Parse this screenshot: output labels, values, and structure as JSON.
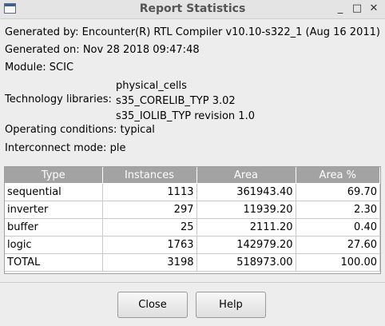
{
  "window": {
    "title": "Report Statistics",
    "minimize": "_",
    "maximize": "□",
    "close": "✕"
  },
  "info": {
    "generated_by_label": "Generated by:",
    "generated_by_value": "Encounter(R) RTL Compiler v10.10-s322_1 (Aug 16 2011)",
    "generated_on_label": "Generated on:",
    "generated_on_value": "Nov 28 2018 09:47:48",
    "module_label": "Module:",
    "module_value": "SCIC",
    "tech_label": "Technology libraries:",
    "tech_values": [
      "physical_cells",
      "s35_CORELIB_TYP 3.02",
      "s35_IOLIB_TYP revision 1.0"
    ],
    "operating_label": "Operating conditions:",
    "operating_value": "typical",
    "interconnect_label": "Interconnect mode:",
    "interconnect_value": "ple"
  },
  "table": {
    "headers": [
      "Type",
      "Instances",
      "Area",
      "Area %"
    ],
    "rows": [
      [
        "sequential",
        "1113",
        "361943.40",
        "69.70"
      ],
      [
        "inverter",
        "297",
        "11939.20",
        "2.30"
      ],
      [
        "buffer",
        "25",
        "2111.20",
        "0.40"
      ],
      [
        "logic",
        "1763",
        "142979.20",
        "27.60"
      ],
      [
        "TOTAL",
        "3198",
        "518973.00",
        "100.00"
      ]
    ]
  },
  "buttons": {
    "close": "Close",
    "help": "Help"
  }
}
